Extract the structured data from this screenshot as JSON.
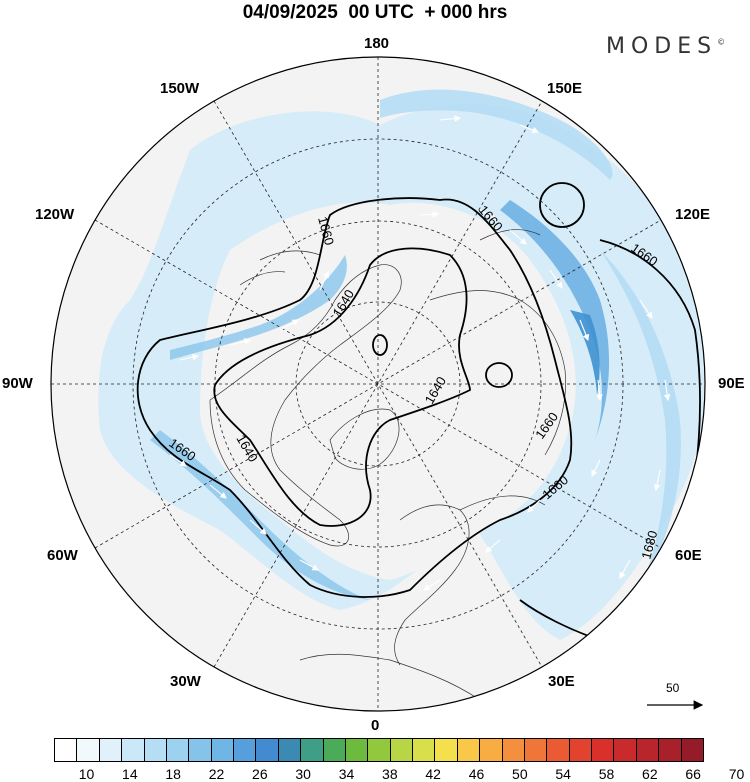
{
  "title": "04/09/2025  00 UTC  + 000 hrs",
  "brand": "MODES",
  "brand_mark": "©",
  "longitude_labels": {
    "top": "180",
    "bottom": "0",
    "left": "90W",
    "right": "90E",
    "upper_left_1": "150W",
    "upper_left_2": "120W",
    "upper_right_1": "150E",
    "upper_right_2": "120E",
    "lower_left_1": "60W",
    "lower_left_2": "30W",
    "lower_right_1": "60E",
    "lower_right_2": "30E"
  },
  "contour_labels": [
    "1660",
    "1640",
    "1660",
    "1640",
    "1660",
    "1660",
    "1640",
    "1660",
    "1680"
  ],
  "vector_reference": "50",
  "colorbar": {
    "tick_labels": [
      "10",
      "14",
      "18",
      "22",
      "26",
      "30",
      "34",
      "38",
      "42",
      "46",
      "50",
      "54",
      "58",
      "62",
      "66",
      "70"
    ],
    "colors": [
      "#ffffff",
      "#f2f9fd",
      "#e0f1fb",
      "#cbe8f8",
      "#b5ddf4",
      "#9dd1f0",
      "#86c3eb",
      "#6fb5e6",
      "#579fdc",
      "#438bd0",
      "#3a8ab3",
      "#3f9e86",
      "#4aab58",
      "#6cbb3f",
      "#92c83d",
      "#b7d544",
      "#d8df4a",
      "#f4e04c",
      "#f9c848",
      "#f7ad42",
      "#f48f3d",
      "#f07538",
      "#ea5b33",
      "#e2432f",
      "#d9302b",
      "#c92a2b",
      "#b8252a",
      "#a82029",
      "#951b28"
    ]
  }
}
